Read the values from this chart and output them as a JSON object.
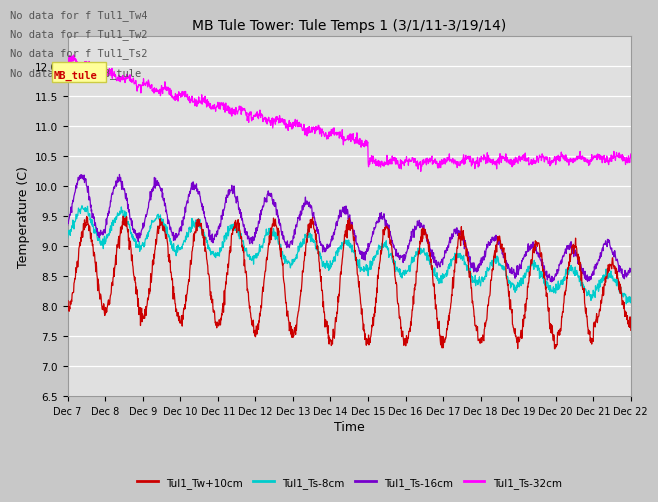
{
  "title": "MB Tule Tower: Tule Temps 1 (3/1/11-3/19/14)",
  "xlabel": "Time",
  "ylabel": "Temperature (C)",
  "ylim": [
    6.5,
    12.5
  ],
  "yticks": [
    6.5,
    7.0,
    7.5,
    8.0,
    8.5,
    9.0,
    9.5,
    10.0,
    10.5,
    11.0,
    11.5,
    12.0
  ],
  "xtick_labels": [
    "Dec 7",
    "Dec 8",
    "Dec 9",
    "Dec 10",
    "Dec 11",
    "Dec 12",
    "Dec 13",
    "Dec 14",
    "Dec 15",
    "Dec 16",
    "Dec 17",
    "Dec 18",
    "Dec 19",
    "Dec 20",
    "Dec 21",
    "Dec 22"
  ],
  "series_colors": [
    "#cc0000",
    "#00cccc",
    "#7700cc",
    "#ff00ff"
  ],
  "series_labels": [
    "Tul1_Tw+10cm",
    "Tul1_Ts-8cm",
    "Tul1_Ts-16cm",
    "Tul1_Ts-32cm"
  ],
  "no_data_texts": [
    "No data for f Tul1_Tw4",
    "No data for f Tul1_Tw2",
    "No data for f Tul1_Ts2",
    "No data for f MB_tule"
  ],
  "fig_facecolor": "#c8c8c8",
  "ax_facecolor": "#e0e0e0",
  "grid_color": "#ffffff",
  "n_points": 1500
}
